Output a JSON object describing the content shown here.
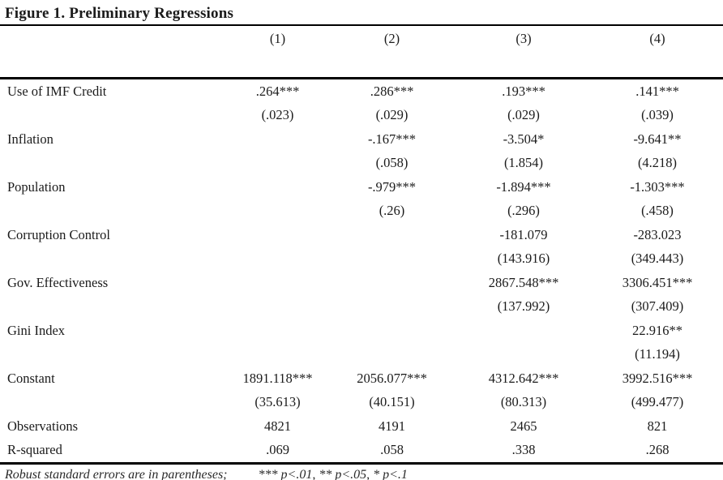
{
  "title": "Figure 1. Preliminary Regressions",
  "table": {
    "column_headers": [
      "(1)",
      "(2)",
      "(3)",
      "(4)"
    ],
    "rows": [
      {
        "label": "Use of IMF Credit",
        "cells": [
          ".264***",
          ".286***",
          ".193***",
          ".141***"
        ]
      },
      {
        "label": "",
        "cells": [
          "(.023)",
          "(.029)",
          "(.029)",
          "(.039)"
        ]
      },
      {
        "label": "Inflation",
        "cells": [
          "",
          "-.167***",
          "-3.504*",
          "-9.641**"
        ]
      },
      {
        "label": "",
        "cells": [
          "",
          "(.058)",
          "(1.854)",
          "(4.218)"
        ]
      },
      {
        "label": "Population",
        "cells": [
          "",
          "-.979***",
          "-1.894***",
          "-1.303***"
        ]
      },
      {
        "label": "",
        "cells": [
          "",
          "(.26)",
          "(.296)",
          "(.458)"
        ]
      },
      {
        "label": "Corruption Control",
        "cells": [
          "",
          "",
          "-181.079",
          "-283.023"
        ]
      },
      {
        "label": "",
        "cells": [
          "",
          "",
          "(143.916)",
          "(349.443)"
        ]
      },
      {
        "label": "Gov. Effectiveness",
        "cells": [
          "",
          "",
          "2867.548***",
          "3306.451***"
        ]
      },
      {
        "label": "",
        "cells": [
          "",
          "",
          "(137.992)",
          "(307.409)"
        ]
      },
      {
        "label": "Gini Index",
        "cells": [
          "",
          "",
          "",
          "22.916**"
        ]
      },
      {
        "label": "",
        "cells": [
          "",
          "",
          "",
          "(11.194)"
        ]
      },
      {
        "label": "Constant",
        "cells": [
          "1891.118***",
          "2056.077***",
          "4312.642***",
          "3992.516***"
        ]
      },
      {
        "label": "",
        "cells": [
          "(35.613)",
          "(40.151)",
          "(80.313)",
          "(499.477)"
        ]
      },
      {
        "label": "Observations",
        "cells": [
          "4821",
          "4191",
          "2465",
          "821"
        ]
      },
      {
        "label": "R-squared",
        "cells": [
          ".069",
          ".058",
          ".338",
          ".268"
        ]
      }
    ]
  },
  "footer": {
    "note": "Robust standard errors are in parentheses;",
    "legend": "*** p<.01, ** p<.05, * p<.1"
  },
  "colors": {
    "background": "#ffffff",
    "text": "#1b1b1b",
    "rule": "#000000"
  }
}
